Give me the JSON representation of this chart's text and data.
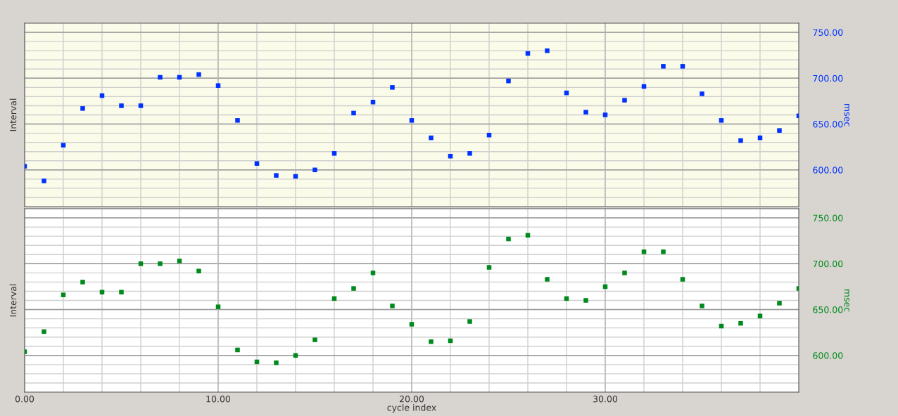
{
  "chart_data": [
    {
      "type": "scatter",
      "marker": "square",
      "grid": true,
      "tick_labels": "y",
      "annotations": [
        "Interval"
      ],
      "y2label": "msec",
      "xlim": [
        0,
        40
      ],
      "xticks": [
        {
          "value": 0,
          "label": null
        },
        {
          "value": 2,
          "label": null
        },
        {
          "value": 4,
          "label": null
        },
        {
          "value": 6,
          "label": null
        },
        {
          "value": 8,
          "label": null
        },
        {
          "value": 10,
          "label": null
        },
        {
          "value": 12,
          "label": null
        },
        {
          "value": 14,
          "label": null
        },
        {
          "value": 16,
          "label": null
        },
        {
          "value": 18,
          "label": null
        },
        {
          "value": 20,
          "label": null
        },
        {
          "value": 22,
          "label": null
        },
        {
          "value": 24,
          "label": null
        },
        {
          "value": 26,
          "label": null
        },
        {
          "value": 28,
          "label": null
        },
        {
          "value": 30,
          "label": null
        },
        {
          "value": 32,
          "label": null
        },
        {
          "value": 34,
          "label": null
        },
        {
          "value": 36,
          "label": null
        },
        {
          "value": 38,
          "label": null
        }
      ],
      "ylim": [
        560,
        760
      ],
      "yticks": [
        {
          "value": 570,
          "label": null
        },
        {
          "value": 580,
          "label": null
        },
        {
          "value": 590,
          "label": null
        },
        {
          "value": 600,
          "label": "600.00"
        },
        {
          "value": 610,
          "label": null
        },
        {
          "value": 620,
          "label": null
        },
        {
          "value": 630,
          "label": null
        },
        {
          "value": 640,
          "label": null
        },
        {
          "value": 650,
          "label": "650.00"
        },
        {
          "value": 660,
          "label": null
        },
        {
          "value": 670,
          "label": null
        },
        {
          "value": 680,
          "label": null
        },
        {
          "value": 690,
          "label": null
        },
        {
          "value": 700,
          "label": "700.00"
        },
        {
          "value": 710,
          "label": null
        },
        {
          "value": 720,
          "label": null
        },
        {
          "value": 730,
          "label": null
        },
        {
          "value": 740,
          "label": null
        },
        {
          "value": 750,
          "label": "750.00"
        }
      ],
      "x": [
        0,
        1,
        2,
        3,
        4,
        5,
        6,
        7,
        8,
        9,
        10,
        11,
        12,
        13,
        14,
        15,
        16,
        17,
        18,
        19,
        20,
        21,
        22,
        23,
        24,
        25,
        26,
        27,
        28,
        29,
        30,
        31,
        32,
        33,
        34,
        35,
        36,
        37,
        38,
        39,
        40
      ],
      "series": [
        {
          "color": "#0033ff",
          "values": [
            604,
            588,
            627,
            667,
            681,
            670,
            670,
            701,
            701,
            704,
            692,
            654,
            607,
            594,
            593,
            600,
            618,
            662,
            674,
            690,
            654,
            635,
            615,
            618,
            638,
            697,
            727,
            730,
            684,
            663,
            660,
            676,
            691,
            713,
            713,
            683,
            654,
            632,
            635,
            643,
            659
          ]
        }
      ]
    },
    {
      "type": "scatter",
      "marker": "square",
      "grid": true,
      "annotations": [
        "Interval"
      ],
      "xlabel": "cycle index",
      "y2label": "msec",
      "xlim": [
        0,
        40
      ],
      "xticks": [
        {
          "value": 0,
          "label": "0.00"
        },
        {
          "value": 2,
          "label": null
        },
        {
          "value": 4,
          "label": null
        },
        {
          "value": 6,
          "label": null
        },
        {
          "value": 8,
          "label": null
        },
        {
          "value": 10,
          "label": "10.00"
        },
        {
          "value": 12,
          "label": null
        },
        {
          "value": 14,
          "label": null
        },
        {
          "value": 16,
          "label": null
        },
        {
          "value": 18,
          "label": null
        },
        {
          "value": 20,
          "label": "20.00"
        },
        {
          "value": 22,
          "label": null
        },
        {
          "value": 24,
          "label": null
        },
        {
          "value": 26,
          "label": null
        },
        {
          "value": 28,
          "label": null
        },
        {
          "value": 30,
          "label": "30.00"
        },
        {
          "value": 32,
          "label": null
        },
        {
          "value": 34,
          "label": null
        },
        {
          "value": 36,
          "label": null
        },
        {
          "value": 38,
          "label": null
        }
      ],
      "ylim": [
        560,
        760
      ],
      "yticks": [
        {
          "value": 570,
          "label": null
        },
        {
          "value": 580,
          "label": null
        },
        {
          "value": 590,
          "label": null
        },
        {
          "value": 600,
          "label": "600.00"
        },
        {
          "value": 610,
          "label": null
        },
        {
          "value": 620,
          "label": null
        },
        {
          "value": 630,
          "label": null
        },
        {
          "value": 640,
          "label": null
        },
        {
          "value": 650,
          "label": "650.00"
        },
        {
          "value": 660,
          "label": null
        },
        {
          "value": 670,
          "label": null
        },
        {
          "value": 680,
          "label": null
        },
        {
          "value": 690,
          "label": null
        },
        {
          "value": 700,
          "label": "700.00"
        },
        {
          "value": 710,
          "label": null
        },
        {
          "value": 720,
          "label": null
        },
        {
          "value": 730,
          "label": null
        },
        {
          "value": 740,
          "label": null
        },
        {
          "value": 750,
          "label": "750.00"
        }
      ],
      "x": [
        0,
        1,
        2,
        3,
        4,
        5,
        6,
        7,
        8,
        9,
        10,
        11,
        12,
        13,
        14,
        15,
        16,
        17,
        18,
        19,
        20,
        21,
        22,
        23,
        24,
        25,
        26,
        27,
        28,
        29,
        30,
        31,
        32,
        33,
        34,
        35,
        36,
        37,
        38,
        39,
        40
      ],
      "series": [
        {
          "color": "#008a1c",
          "values": [
            604,
            626,
            666,
            680,
            669,
            669,
            700,
            700,
            703,
            692,
            653,
            606,
            593,
            592,
            600,
            617,
            662,
            673,
            690,
            654,
            634,
            615,
            616,
            637,
            696,
            727,
            731,
            683,
            662,
            660,
            675,
            690,
            713,
            713,
            683,
            654,
            632,
            635,
            643,
            657,
            673
          ]
        }
      ]
    }
  ]
}
